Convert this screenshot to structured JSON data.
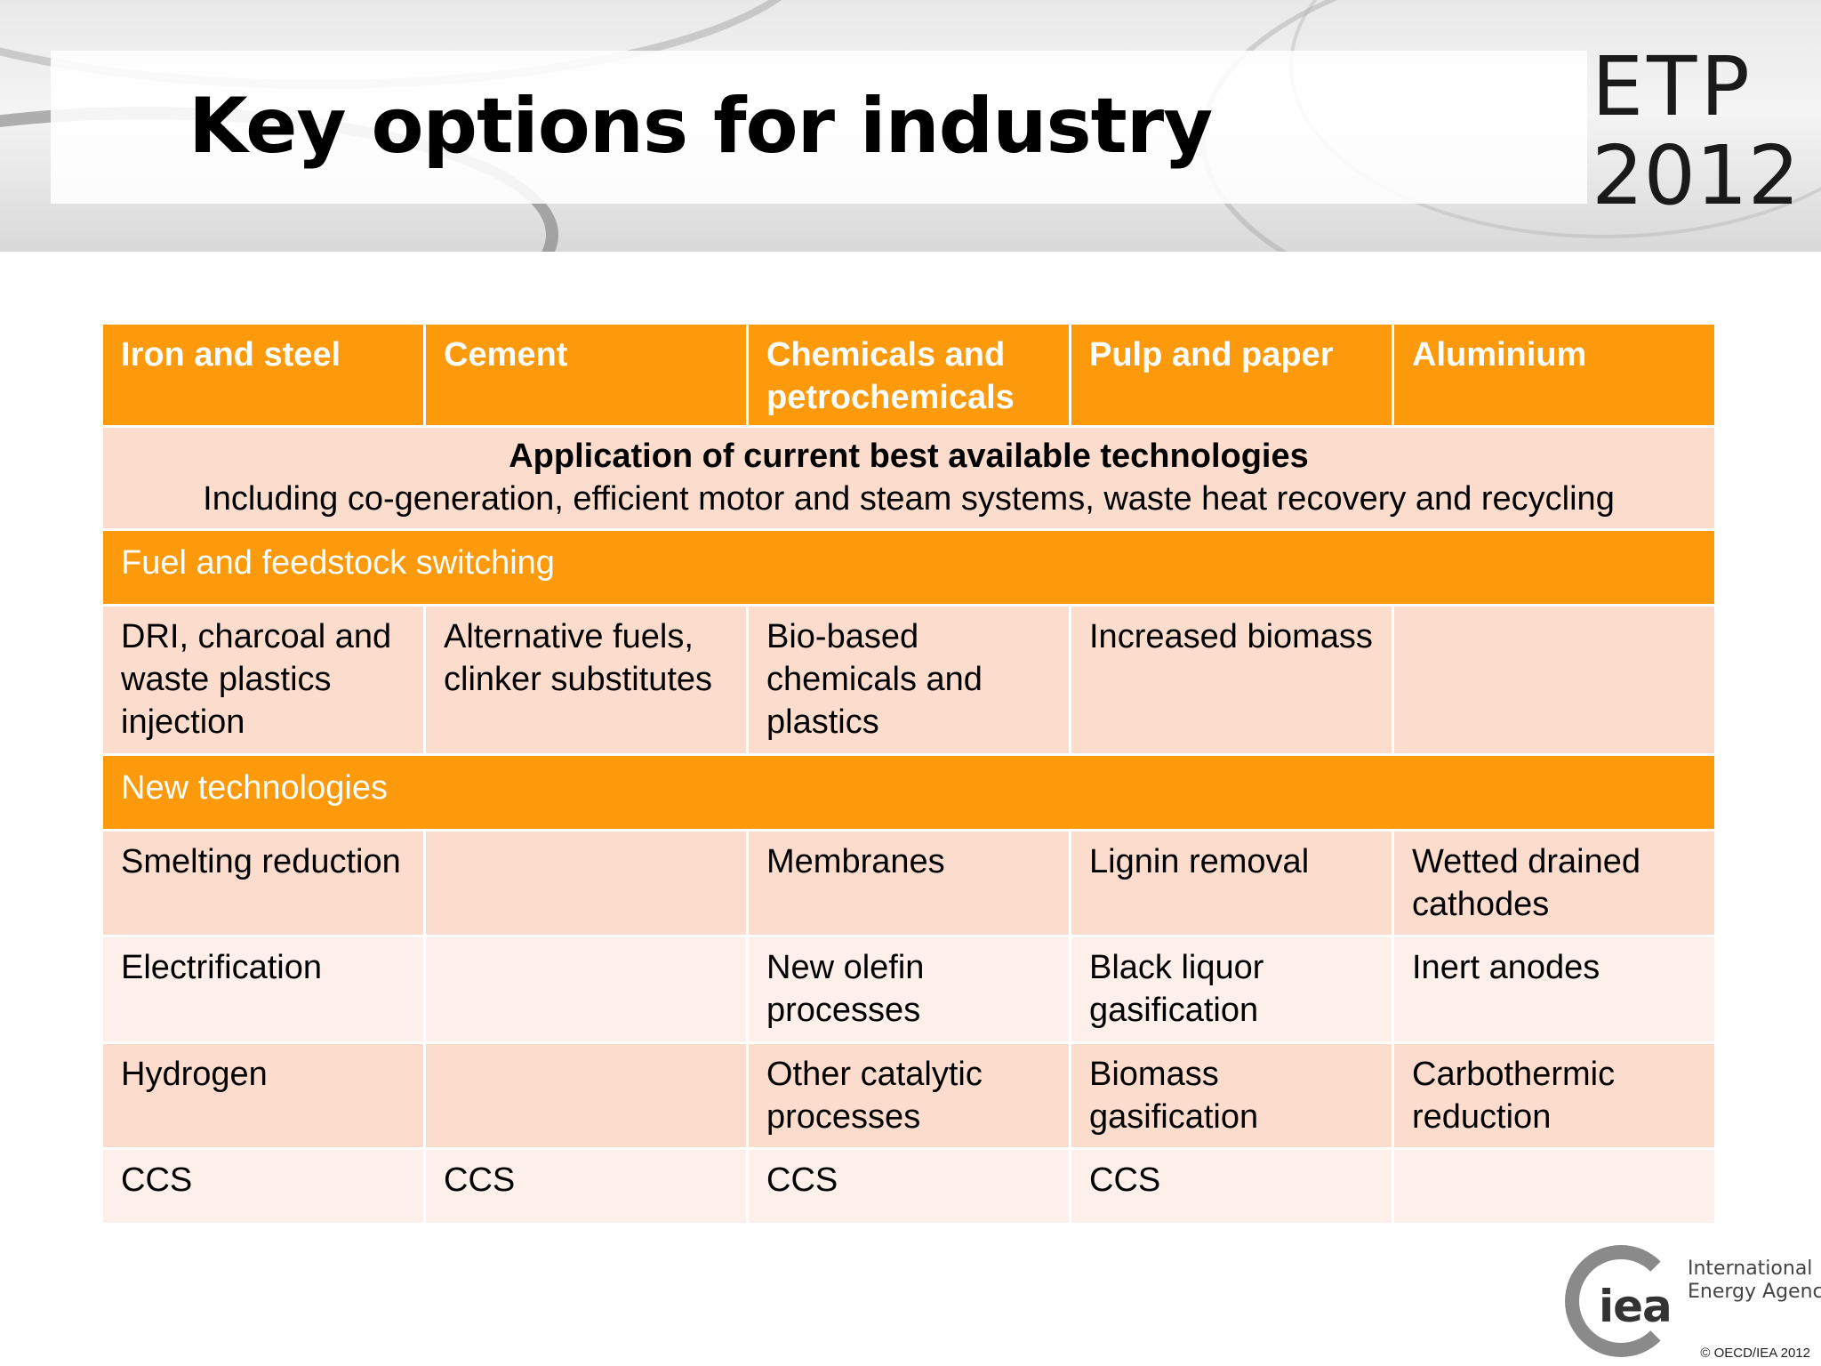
{
  "title": "Key options for industry",
  "brand": {
    "line1": "ETP",
    "line2": "2012"
  },
  "table": {
    "headers": [
      "Iron and steel",
      "Cement",
      "Chemicals and petrochemicals",
      "Pulp and paper",
      "Aluminium"
    ],
    "bat": {
      "title": "Application of current best available technologies",
      "subtitle": "Including co-generation, efficient motor and steam systems, waste heat recovery and recycling"
    },
    "section_fuel": "Fuel and feedstock switching",
    "fuel_row": [
      "DRI, charcoal and waste plastics injection",
      "Alternative fuels, clinker substitutes",
      "Bio-based chemicals and plastics",
      "Increased biomass",
      ""
    ],
    "section_new": "New technologies",
    "new_rows": [
      [
        "Smelting reduction",
        "",
        "Membranes",
        "Lignin removal",
        "Wetted drained cathodes"
      ],
      [
        "Electrification",
        "",
        "New olefin processes",
        "Black liquor gasification",
        "Inert anodes"
      ],
      [
        "Hydrogen",
        "",
        "Other catalytic processes",
        "Biomass gasification",
        "Carbothermic reduction"
      ],
      [
        "CCS",
        "CCS",
        "CCS",
        "CCS",
        ""
      ]
    ]
  },
  "logo": {
    "mark": "iea",
    "line1": "International",
    "line2": "Energy Agency"
  },
  "copyright": "© OECD/IEA 2012",
  "colors": {
    "orange": "#fc9a0c",
    "cell_dark": "#fcdccd",
    "cell_light": "#fdefe9"
  }
}
